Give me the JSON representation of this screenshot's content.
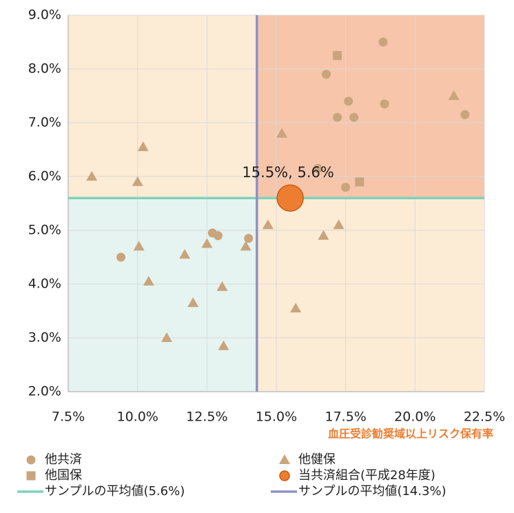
{
  "chart_data": {
    "type": "scatter",
    "x_label": "血圧受診勧奨域以上リスク保有率",
    "xlim": [
      7.5,
      22.5
    ],
    "ylim": [
      2.0,
      9.0
    ],
    "xticks": [
      {
        "value": 7.5,
        "label": "7.5%"
      },
      {
        "value": 10.0,
        "label": "10.0%"
      },
      {
        "value": 12.5,
        "label": "12.5%"
      },
      {
        "value": 15.0,
        "label": "15.0%"
      },
      {
        "value": 17.5,
        "label": "17.5%"
      },
      {
        "value": 20.0,
        "label": "20.0%"
      },
      {
        "value": 22.5,
        "label": "22.5%"
      }
    ],
    "yticks": [
      {
        "value": 2.0,
        "label": "2.0%"
      },
      {
        "value": 3.0,
        "label": "3.0%"
      },
      {
        "value": 4.0,
        "label": "4.0%"
      },
      {
        "value": 5.0,
        "label": "5.0%"
      },
      {
        "value": 6.0,
        "label": "6.0%"
      },
      {
        "value": 7.0,
        "label": "7.0%"
      },
      {
        "value": 8.0,
        "label": "8.0%"
      },
      {
        "value": 9.0,
        "label": "9.0%"
      }
    ],
    "grid": true,
    "quadrant_colors": {
      "top_left": "#fdecd5",
      "top_right": "#f6c5aa",
      "bottom_left": "#e5f4f0",
      "bottom_right": "#fdecd5"
    },
    "series": [
      {
        "name": "他共済",
        "marker": "circle",
        "color": "#c9a47c",
        "x": [
          9.4,
          12.7,
          12.9,
          14.0,
          16.5,
          17.5,
          16.8,
          17.2,
          17.6,
          17.8,
          18.85,
          18.9,
          21.8
        ],
        "y": [
          4.5,
          4.95,
          4.9,
          4.85,
          6.15,
          5.8,
          7.9,
          7.1,
          7.4,
          7.1,
          8.5,
          7.35,
          7.15
        ]
      },
      {
        "name": "他国保",
        "marker": "square",
        "color": "#c9a47c",
        "x": [
          17.2,
          18.0
        ],
        "y": [
          8.25,
          5.9
        ]
      },
      {
        "name": "他健保",
        "marker": "triangle",
        "color": "#c9a47c",
        "x": [
          8.35,
          10.0,
          10.2,
          10.05,
          10.4,
          11.05,
          11.7,
          12.0,
          12.5,
          13.05,
          13.1,
          13.9,
          14.7,
          15.2,
          15.7,
          16.7,
          17.25,
          21.4
        ],
        "y": [
          6.0,
          5.9,
          6.55,
          4.7,
          4.05,
          3.0,
          4.55,
          3.65,
          4.75,
          3.95,
          2.85,
          4.7,
          5.1,
          6.8,
          3.55,
          4.9,
          5.1,
          7.5
        ]
      },
      {
        "name": "当共済組合(平成28年度)",
        "marker": "big-circle",
        "color": "#ed7d31",
        "x": [
          15.5
        ],
        "y": [
          5.6
        ],
        "value_labels": [
          "15.5%, 5.6%"
        ]
      }
    ],
    "mean_lines": [
      {
        "name": "サンプルの平均値(5.6%)",
        "axis": "y",
        "value": 5.6,
        "color": "#7dd3bb"
      },
      {
        "name": "サンプルの平均値(14.3%)",
        "axis": "x",
        "value": 14.3,
        "color": "#8f90c3"
      }
    ]
  }
}
